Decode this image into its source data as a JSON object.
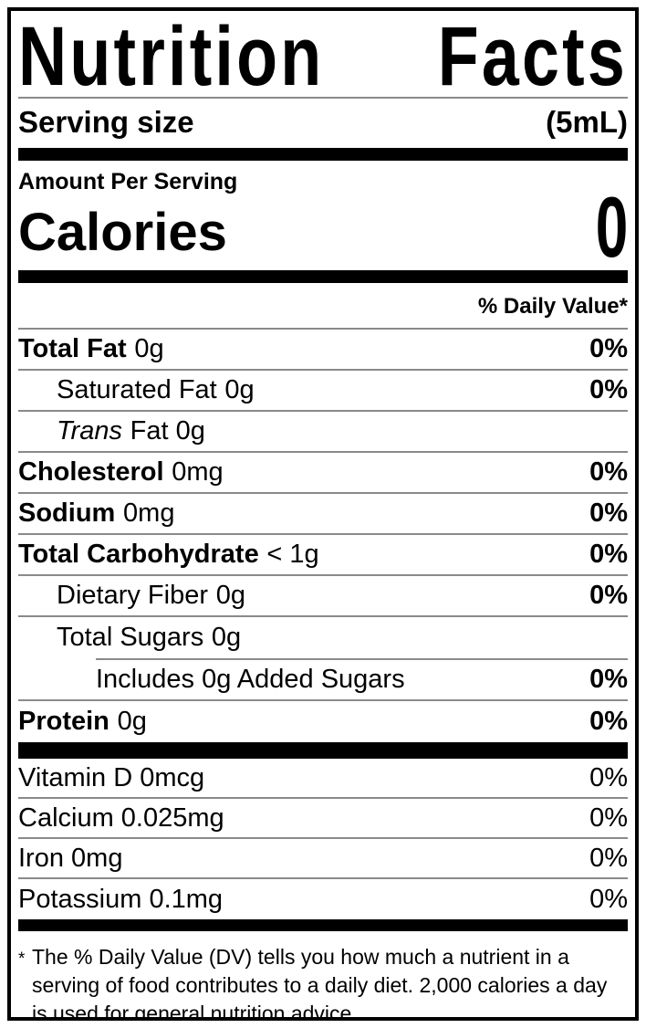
{
  "label": {
    "title": {
      "word1": "Nutrition",
      "word2": "Facts"
    },
    "serving": {
      "name": "Serving size",
      "value": "(5mL)"
    },
    "amount_per_serving": "Amount Per Serving",
    "calories": {
      "name": "Calories",
      "value": "0"
    },
    "dv_header": "% Daily Value*",
    "rows": [
      {
        "name": "Total Fat",
        "amount": "0g",
        "dv": "0%"
      },
      {
        "name": "Saturated Fat",
        "amount": "0g",
        "dv": "0%"
      },
      {
        "name": "Trans",
        "amount": "Fat 0g",
        "dv": ""
      },
      {
        "name": "Cholesterol",
        "amount": "0mg",
        "dv": "0%"
      },
      {
        "name": "Sodium",
        "amount": "0mg",
        "dv": "0%"
      },
      {
        "name": "Total Carbohydrate",
        "amount": "< 1g",
        "dv": "0%"
      },
      {
        "name": "Dietary Fiber",
        "amount": "0g",
        "dv": "0%"
      },
      {
        "name": "Total Sugars",
        "amount": "0g",
        "dv": ""
      },
      {
        "name": "Includes 0g Added Sugars",
        "amount": "",
        "dv": "0%"
      },
      {
        "name": "Protein",
        "amount": "0g",
        "dv": "0%"
      }
    ],
    "micronutrients": [
      {
        "name": "Vitamin D 0mcg",
        "dv": "0%"
      },
      {
        "name": "Calcium 0.025mg",
        "dv": "0%"
      },
      {
        "name": "Iron 0mg",
        "dv": "0%"
      },
      {
        "name": "Potassium 0.1mg",
        "dv": "0%"
      }
    ],
    "footnote": {
      "marker": "*",
      "text": "The % Daily Value (DV) tells you how much a nutrient in a serving of food contributes to a daily diet. 2,000 calories a day is used for general nutrition advice."
    },
    "colors": {
      "ink": "#000000",
      "hairline": "#8a8a8a",
      "background": "#ffffff"
    }
  }
}
